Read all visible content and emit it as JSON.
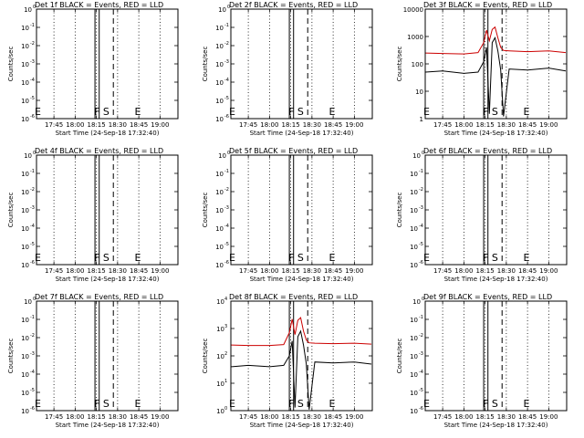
{
  "figure": {
    "panels": [
      {
        "title": "Det 1f BLACK = Events, RED = LLD",
        "has_data": false
      },
      {
        "title": "Det 2f BLACK = Events, RED = LLD",
        "has_data": false
      },
      {
        "title": "Det 3f BLACK = Events, RED = LLD",
        "has_data": true
      },
      {
        "title": "Det 4f BLACK = Events, RED = LLD",
        "has_data": false
      },
      {
        "title": "Det 5f BLACK = Events, RED = LLD",
        "has_data": false
      },
      {
        "title": "Det 6f BLACK = Events, RED = LLD",
        "has_data": false
      },
      {
        "title": "Det 7f BLACK = Events, RED = LLD",
        "has_data": false
      },
      {
        "title": "Det 8f BLACK = Events, RED = LLD",
        "has_data": true
      },
      {
        "title": "Det 9f BLACK = Events, RED = LLD",
        "has_data": false
      }
    ],
    "xlabel": "Start Time (24-Sep-18 17:32:40)",
    "ylabel": "Counts/sec",
    "xticks": [
      "17:45",
      "18:00",
      "18:15",
      "18:30",
      "18:45",
      "19:00"
    ],
    "empty_yticks": {
      "base": "10",
      "exponents": [
        "0",
        "-1",
        "-2",
        "-3",
        "-4",
        "-5",
        "-6"
      ]
    },
    "data_yticks": {
      "base": "10",
      "exponents": [
        "0",
        "1",
        "2",
        "3",
        "4"
      ],
      "plain": [
        "1",
        "10",
        "100",
        "1000",
        "10000"
      ]
    },
    "markers": {
      "F": "F",
      "S": "S",
      "E": "E",
      "Eleft": "E"
    },
    "colors": {
      "events": "#000000",
      "lld": "#cc0000",
      "axes": "#000000"
    }
  },
  "chart_data": {
    "type": "line",
    "x_unit": "minutes",
    "x_range": [
      "17:32:40",
      "19:12:40"
    ],
    "grid": "vertical dotted at every x tick",
    "y_scale": "log",
    "markers": {
      "F_start": "18:14",
      "F_end": "18:17",
      "S": "18:19",
      "dashed": "18:27",
      "E": "18:42"
    },
    "panels": [
      {
        "title": "Det 1f BLACK = Events, RED = LLD",
        "ylim": [
          1e-06,
          1
        ],
        "series": []
      },
      {
        "title": "Det 2f BLACK = Events, RED = LLD",
        "ylim": [
          1e-06,
          1
        ],
        "series": []
      },
      {
        "title": "Det 3f BLACK = Events, RED = LLD",
        "ylim": [
          1,
          10000
        ],
        "series": [
          {
            "color": "red",
            "x": [
              "17:33",
              "17:45",
              "18:00",
              "18:10",
              "18:14",
              "18:16",
              "18:18",
              "18:20",
              "18:22",
              "18:24",
              "18:26",
              "18:28",
              "18:32",
              "18:45",
              "19:00",
              "19:12"
            ],
            "values": [
              250,
              240,
              230,
              260,
              600,
              1700,
              700,
              1800,
              2200,
              900,
              400,
              310,
              300,
              280,
              300,
              260
            ]
          },
          {
            "color": "black",
            "x": [
              "17:33",
              "17:45",
              "18:00",
              "18:10",
              "18:14",
              "18:16",
              "18:18",
              "18:20",
              "18:22",
              "18:24",
              "18:26",
              "18:28",
              "18:32",
              "18:45",
              "19:00",
              "19:12"
            ],
            "values": [
              50,
              55,
              45,
              50,
              120,
              400,
              1.5,
              600,
              900,
              300,
              60,
              1.2,
              65,
              60,
              70,
              55
            ]
          }
        ]
      },
      {
        "title": "Det 4f BLACK = Events, RED = LLD",
        "ylim": [
          1e-06,
          1
        ],
        "series": []
      },
      {
        "title": "Det 5f BLACK = Events, RED = LLD",
        "ylim": [
          1e-06,
          1
        ],
        "series": []
      },
      {
        "title": "Det 6f BLACK = Events, RED = LLD",
        "ylim": [
          1e-06,
          1
        ],
        "series": []
      },
      {
        "title": "Det 7f BLACK = Events, RED = LLD",
        "ylim": [
          1e-06,
          1
        ],
        "series": []
      },
      {
        "title": "Det 8f BLACK = Events, RED = LLD",
        "ylim": [
          1,
          10000
        ],
        "series": [
          {
            "color": "red",
            "x": [
              "17:33",
              "17:45",
              "18:00",
              "18:10",
              "18:14",
              "18:16",
              "18:18",
              "18:20",
              "18:22",
              "18:24",
              "18:26",
              "18:28",
              "18:32",
              "18:45",
              "19:00",
              "19:12"
            ],
            "values": [
              250,
              240,
              240,
              260,
              700,
              2200,
              600,
              2000,
              2500,
              800,
              380,
              300,
              290,
              280,
              290,
              270
            ]
          },
          {
            "color": "black",
            "x": [
              "17:33",
              "17:45",
              "18:00",
              "18:10",
              "18:14",
              "18:16",
              "18:18",
              "18:20",
              "18:22",
              "18:24",
              "18:26",
              "18:28",
              "18:32",
              "18:45",
              "19:00",
              "19:12"
            ],
            "values": [
              40,
              45,
              40,
              45,
              100,
              350,
              1.3,
              500,
              800,
              250,
              50,
              1.1,
              60,
              55,
              60,
              50
            ]
          }
        ]
      },
      {
        "title": "Det 9f BLACK = Events, RED = LLD",
        "ylim": [
          1e-06,
          1
        ],
        "series": []
      }
    ]
  }
}
